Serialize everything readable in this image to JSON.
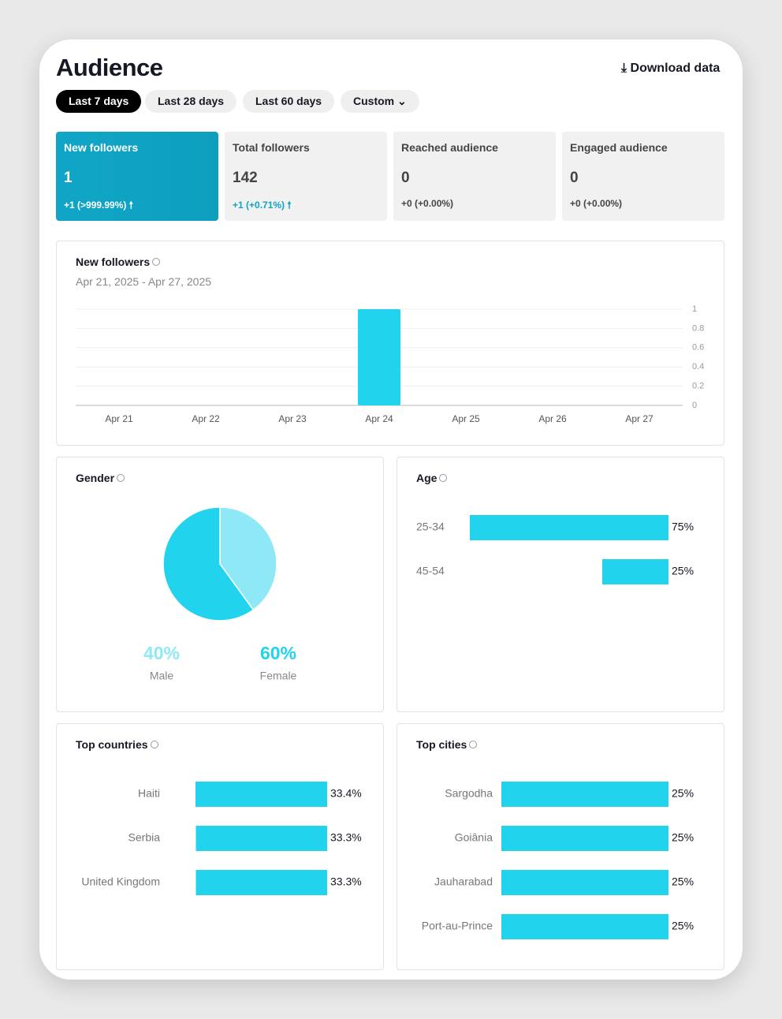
{
  "header": {
    "title": "Audience",
    "download": "Download data"
  },
  "filters": [
    "Last 7 days",
    "Last 28 days",
    "Last 60 days",
    "Custom"
  ],
  "stats": [
    {
      "label": "New followers",
      "value": "1",
      "change": "+1 (>999.99%)"
    },
    {
      "label": "Total followers",
      "value": "142",
      "change": "+1 (+0.71%)"
    },
    {
      "label": "Reached audience",
      "value": "0",
      "change": "+0 (+0.00%)"
    },
    {
      "label": "Engaged audience",
      "value": "0",
      "change": "+0 (+0.00%)"
    }
  ],
  "chart_data": [
    {
      "type": "bar",
      "title": "New followers",
      "subtitle": "Apr 21, 2025 - Apr 27, 2025",
      "categories": [
        "Apr 21",
        "Apr 22",
        "Apr 23",
        "Apr 24",
        "Apr 25",
        "Apr 26",
        "Apr 27"
      ],
      "values": [
        0,
        0,
        0,
        1,
        0,
        0,
        0
      ],
      "color": "#22d3ee",
      "ylim": [
        0,
        1
      ],
      "yticks": [
        0,
        0.2,
        0.4,
        0.6,
        0.8,
        1
      ],
      "grid": true
    },
    {
      "type": "pie",
      "title": "Gender",
      "categories": [
        "Male",
        "Female"
      ],
      "values": [
        40,
        60
      ],
      "value_labels": [
        "40%",
        "60%"
      ],
      "colors": [
        "#8ee8f5",
        "#22d3ee"
      ]
    },
    {
      "type": "hbar",
      "title": "Age",
      "categories": [
        "25-34",
        "45-54"
      ],
      "values": [
        75,
        25
      ],
      "value_labels": [
        "75%",
        "25%"
      ],
      "color": "#22d3ee"
    },
    {
      "type": "hbar",
      "title": "Top countries",
      "categories": [
        "Haiti",
        "Serbia",
        "United Kingdom"
      ],
      "values": [
        33.4,
        33.3,
        33.3
      ],
      "value_labels": [
        "33.4%",
        "33.3%",
        "33.3%"
      ],
      "color": "#22d3ee"
    },
    {
      "type": "hbar",
      "title": "Top cities",
      "categories": [
        "Sargodha",
        "Goiânia",
        "Jauharabad",
        "Port-au-Prince"
      ],
      "values": [
        25,
        25,
        25,
        25
      ],
      "value_labels": [
        "25%",
        "25%",
        "25%",
        "25%"
      ],
      "color": "#22d3ee"
    }
  ]
}
